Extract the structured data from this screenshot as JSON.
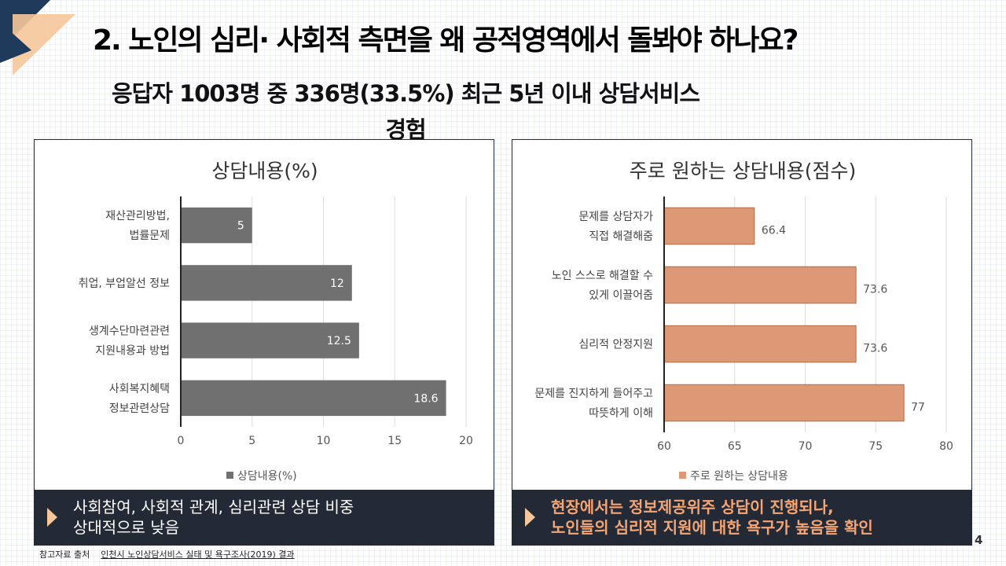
{
  "header": {
    "title": "2. 노인의 심리· 사회적 측면을 왜 공적영역에서 돌봐야 하나요?",
    "subtitle_line1": "응답자 1003명 중 336명(33.5%) 최근 5년 이내 상담서비스",
    "subtitle_line2": "경험"
  },
  "chart_data": [
    {
      "type": "bar",
      "orientation": "horizontal",
      "title": "상담내용(%)",
      "categories": [
        [
          "재산관리방법,",
          "법률문제"
        ],
        [
          "취업, 부업알선 정보"
        ],
        [
          "생계수단마련관련",
          "지원내용과 방법"
        ],
        [
          "사회복지혜택",
          "정보관련상담"
        ]
      ],
      "series": [
        {
          "name": "상담내용(%)",
          "values": [
            5,
            12,
            12.5,
            18.6
          ],
          "color": "#707070"
        }
      ],
      "value_labels": [
        "5",
        "12",
        "12.5",
        "18.6"
      ],
      "xlim": [
        0,
        20
      ],
      "ticks": [
        0,
        5,
        10,
        15,
        20
      ],
      "tick_labels": [
        "0",
        "5",
        "10",
        "15",
        "20"
      ],
      "grid": true,
      "legend": "bottom"
    },
    {
      "type": "bar",
      "orientation": "horizontal",
      "title": "주로 원하는 상담내용(점수)",
      "categories": [
        [
          "문제를 상담자가",
          "직접 해결해줌"
        ],
        [
          "노인 스스로 해결할 수",
          "있게 이끌어줌"
        ],
        [
          "심리적 안정지원"
        ],
        [
          "문제를 진지하게 들어주고",
          "따뜻하게 이해"
        ]
      ],
      "series": [
        {
          "name": "주로 원하는 상담내용",
          "values": [
            66.4,
            73.6,
            73.6,
            77
          ],
          "color": "#dd9975"
        }
      ],
      "value_labels": [
        "66.4",
        "73.6",
        "73.6",
        "77"
      ],
      "xlim": [
        60,
        80
      ],
      "ticks": [
        60,
        65,
        70,
        75,
        80
      ],
      "tick_labels": [
        "60",
        "65",
        "70",
        "75",
        "80"
      ],
      "grid": true,
      "legend": "bottom"
    }
  ],
  "banners": {
    "left": {
      "line1": "사회참여, 사회적 관계, 심리관련 상담 비중",
      "line2": "상대적으로 낮음"
    },
    "right": {
      "line1": "현장에서는 정보제공위주 상담이 진행되나,",
      "line2": "노인들의 심리적 지원에 대한 욕구가 높음을 확인"
    }
  },
  "source": {
    "label": "참고자료 출처",
    "text": "인천시 노인상담서비스 실태 및 욕구조사(2019) 결과"
  },
  "page_number": "4",
  "colors": {
    "dark": "#1f3a5a",
    "accent": "#f5c69a",
    "banner_bg": "#232a36",
    "highlight_text": "#f5a474"
  }
}
